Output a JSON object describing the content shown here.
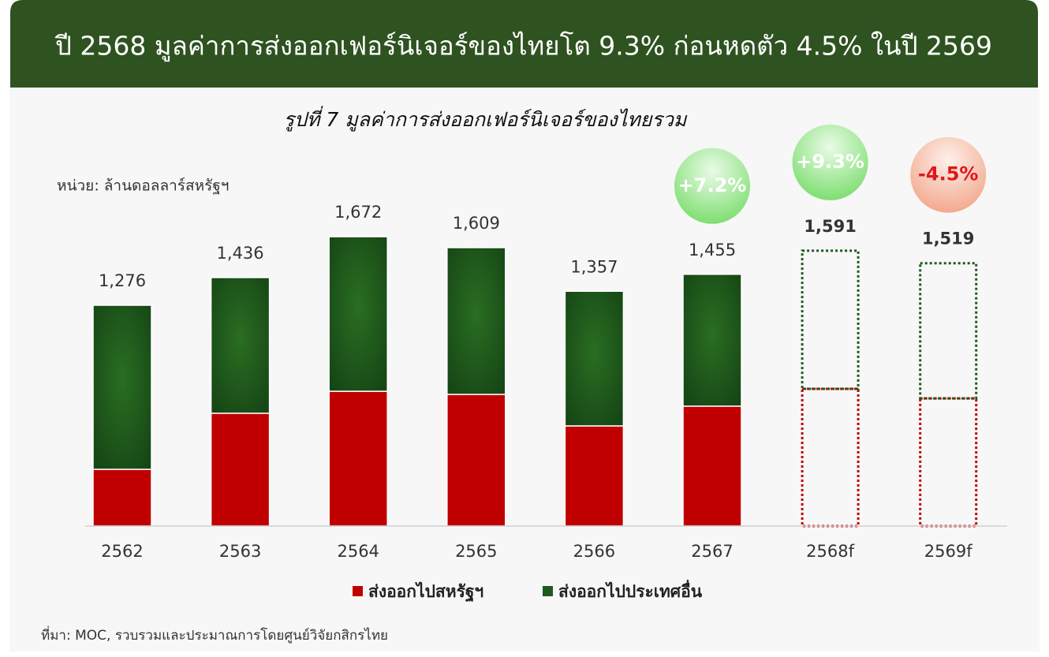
{
  "chart_data": {
    "type": "stacked-bar",
    "title": "ปี 2568 มูลค่าการส่งออกเฟอร์นิเจอร์ของไทยโต 9.3% ก่อนหดตัว 4.5% ในปี 2569",
    "subtitle": "รูปที่ 7 มูลค่าการส่งออกเฟอร์นิเจอร์ของไทยรวม",
    "unit_label": "หน่วย: ล้านดอลลาร์สหรัฐฯ",
    "categories": [
      "2562",
      "2563",
      "2564",
      "2565",
      "2566",
      "2567",
      "2568f",
      "2569f"
    ],
    "forecast": [
      false,
      false,
      false,
      false,
      false,
      false,
      true,
      true
    ],
    "series": [
      {
        "name": "ส่งออกไปสหรัฐฯ",
        "color": "#c00000",
        "values": [
          328,
          652,
          779,
          761,
          579,
          693,
          793,
          738
        ]
      },
      {
        "name": "ส่งออกไปประเทศอื่น",
        "color": "#1e5a1e",
        "values": [
          948,
          784,
          893,
          848,
          778,
          762,
          798,
          781
        ]
      }
    ],
    "total": {
      "values": [
        1276,
        1436,
        1672,
        1609,
        1357,
        1455,
        1591,
        1519
      ],
      "value_labels": [
        "1,276",
        "1,436",
        "1,672",
        "1,609",
        "1,357",
        "1,455",
        "1,591",
        "1,519"
      ]
    },
    "growth": {
      "values": [
        null,
        null,
        null,
        null,
        null,
        7.2,
        9.3,
        -4.5
      ],
      "value_labels": [
        null,
        null,
        null,
        null,
        null,
        "+7.2%",
        "+9.3%",
        "-4.5%"
      ]
    },
    "ylim": [
      0,
      1700
    ],
    "source": "ที่มา: MOC, รวบรวมและประมาณการโดยศูนย์วิจัยกสิกรไทย"
  }
}
